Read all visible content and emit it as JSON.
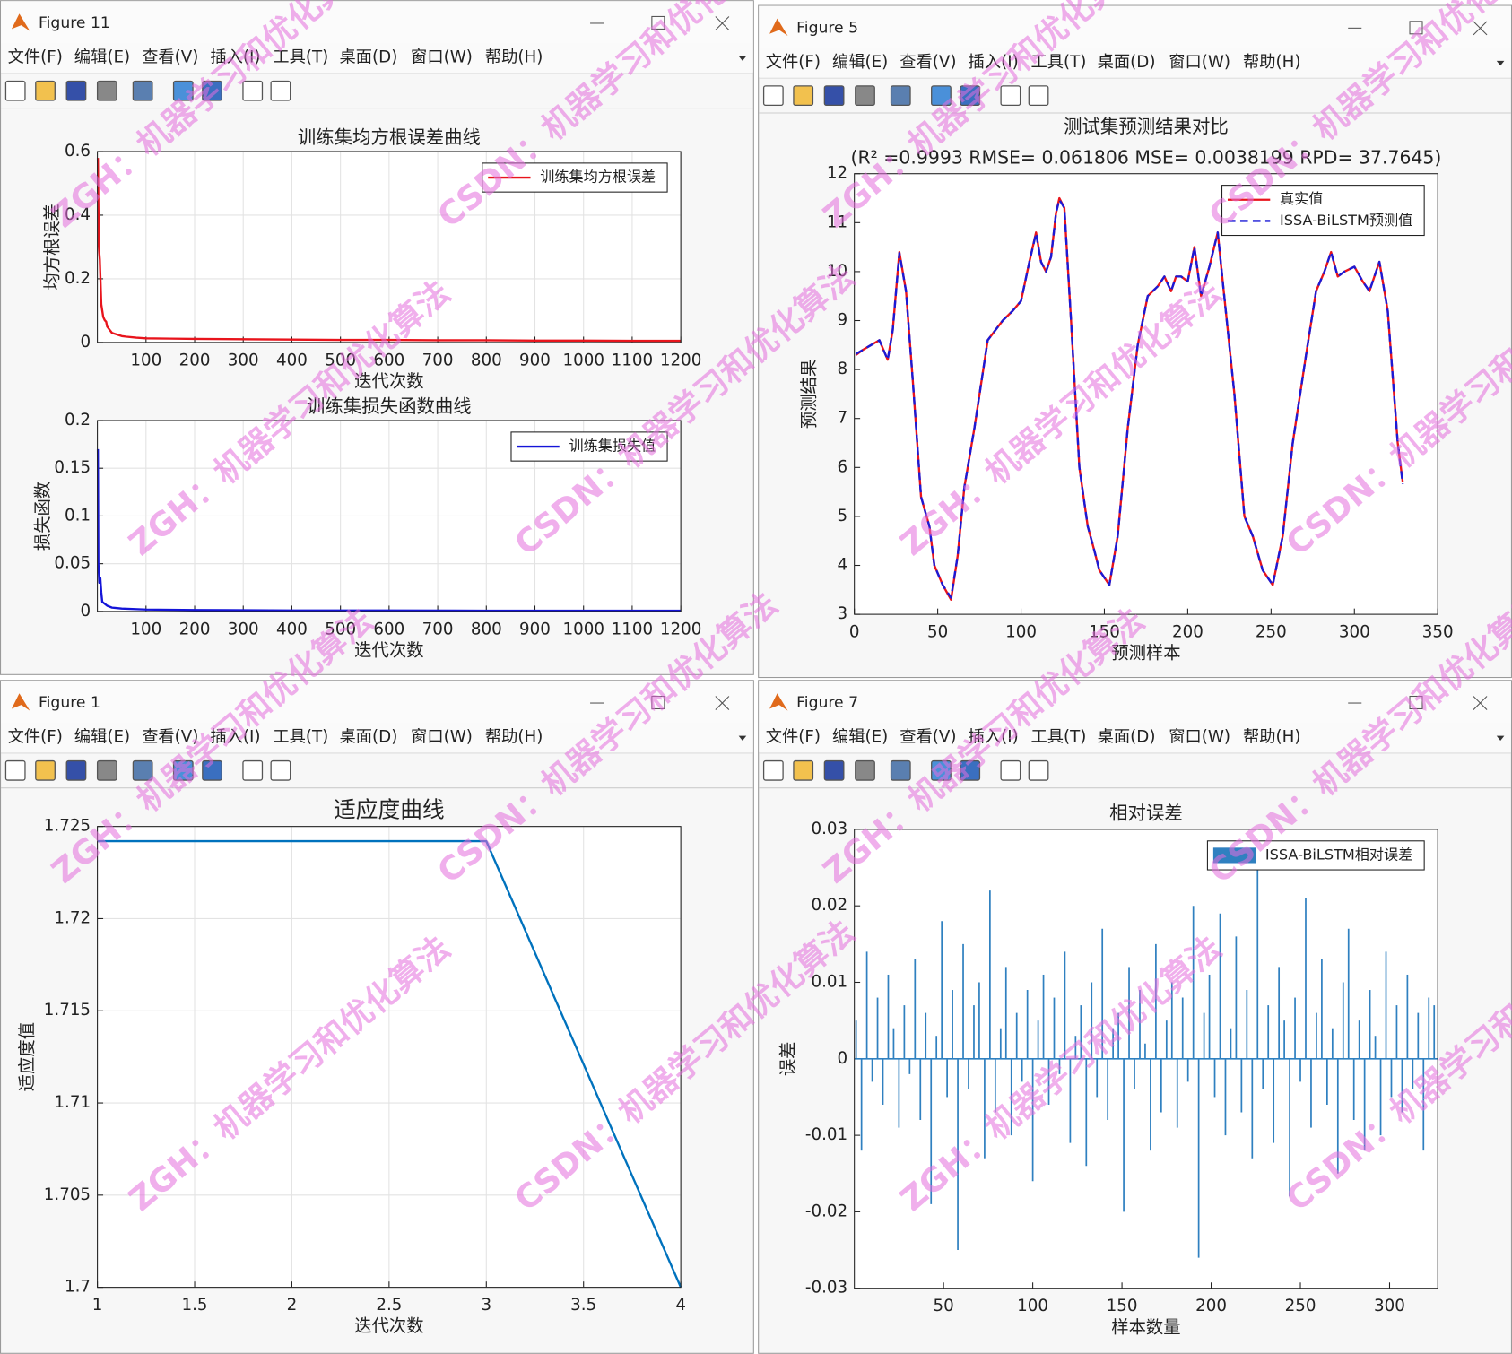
{
  "windows": [
    {
      "title": "Figure 11"
    },
    {
      "title": "Figure 5"
    },
    {
      "title": "Figure 1"
    },
    {
      "title": "Figure 7"
    }
  ],
  "menu": [
    "文件(F)",
    "编辑(E)",
    "查看(V)",
    "插入(I)",
    "工具(T)",
    "桌面(D)",
    "窗口(W)",
    "帮助(H)"
  ],
  "watermarks": [
    "ZGH：机器学习和优化算法",
    "CSDN：机器学习和优化算法"
  ],
  "chart_data": [
    {
      "type": "line",
      "title": "训练集均方根误差曲线",
      "xlabel": "迭代次数",
      "ylabel": "均方根误差",
      "x": [
        1,
        3,
        5,
        8,
        10,
        12,
        15,
        18,
        20,
        25,
        30,
        40,
        50,
        60,
        80,
        100,
        150,
        200,
        300,
        400,
        500,
        600,
        700,
        800,
        900,
        1000,
        1100,
        1200
      ],
      "series": [
        {
          "name": "训练集均方根误差",
          "color": "#e8141c",
          "values": [
            0.58,
            0.3,
            0.26,
            0.12,
            0.1,
            0.08,
            0.07,
            0.065,
            0.05,
            0.04,
            0.03,
            0.025,
            0.02,
            0.018,
            0.015,
            0.013,
            0.012,
            0.011,
            0.01,
            0.009,
            0.008,
            0.008,
            0.007,
            0.007,
            0.006,
            0.006,
            0.005,
            0.005
          ]
        }
      ],
      "xlim": [
        0,
        1200
      ],
      "xticks": [
        100,
        200,
        300,
        400,
        500,
        600,
        700,
        800,
        900,
        1000,
        1100,
        1200
      ],
      "ylim": [
        0,
        0.6
      ],
      "yticks": [
        0,
        0.2,
        0.4,
        0.6
      ],
      "grid": true,
      "legend": "northeast"
    },
    {
      "type": "line",
      "title": "训练集损失函数曲线",
      "xlabel": "迭代次数",
      "ylabel": "损失函数",
      "x": [
        1,
        2,
        4,
        6,
        8,
        10,
        15,
        20,
        30,
        50,
        100,
        200,
        400,
        600,
        800,
        1000,
        1200
      ],
      "series": [
        {
          "name": "训练集损失值",
          "color": "#1414d8",
          "values": [
            0.17,
            0.05,
            0.03,
            0.035,
            0.02,
            0.01,
            0.008,
            0.006,
            0.004,
            0.003,
            0.002,
            0.0015,
            0.001,
            0.001,
            0.0008,
            0.0008,
            0.0008
          ]
        }
      ],
      "xlim": [
        0,
        1200
      ],
      "xticks": [
        100,
        200,
        300,
        400,
        500,
        600,
        700,
        800,
        900,
        1000,
        1100,
        1200
      ],
      "ylim": [
        0,
        0.2
      ],
      "yticks": [
        0,
        0.05,
        0.1,
        0.15,
        0.2
      ],
      "grid": true,
      "legend": "northeast"
    },
    {
      "type": "line",
      "title": "测试集预测结果对比",
      "subtitle": "(R² =0.9993 RMSE= 0.061806 MSE= 0.0038199 RPD= 37.7645)",
      "xlabel": "预测样本",
      "ylabel": "预测结果",
      "x": [
        1,
        5,
        10,
        15,
        20,
        23,
        27,
        31,
        35,
        40,
        45,
        48,
        53,
        58,
        62,
        66,
        72,
        80,
        89,
        95,
        100,
        105,
        109,
        112,
        115,
        118,
        121,
        123,
        126,
        130,
        135,
        140,
        144,
        147,
        153,
        158,
        164,
        170,
        176,
        182,
        186,
        190,
        193,
        196,
        200,
        204,
        208,
        213,
        218,
        221,
        228,
        234,
        239,
        245,
        251,
        257,
        263,
        271,
        277,
        282,
        286,
        290,
        294,
        300,
        305,
        309,
        315,
        320,
        326,
        329
      ],
      "series": [
        {
          "name": "真实值",
          "color": "#e8141c",
          "linestyle": "-",
          "values": [
            8.3,
            8.4,
            8.5,
            8.6,
            8.2,
            8.8,
            10.4,
            9.6,
            7.8,
            5.4,
            4.8,
            4.0,
            3.6,
            3.3,
            4.2,
            5.6,
            6.8,
            8.6,
            9.0,
            9.2,
            9.4,
            10.2,
            10.8,
            10.2,
            10.0,
            10.3,
            11.2,
            11.5,
            11.3,
            9.0,
            6.0,
            4.8,
            4.3,
            3.9,
            3.6,
            4.6,
            6.8,
            8.5,
            9.5,
            9.7,
            9.9,
            9.6,
            9.9,
            9.9,
            9.8,
            10.5,
            9.5,
            10.1,
            10.8,
            9.8,
            7.5,
            5.0,
            4.6,
            3.9,
            3.6,
            4.6,
            6.5,
            8.3,
            9.6,
            10.0,
            10.4,
            9.9,
            10.0,
            10.1,
            9.8,
            9.6,
            10.2,
            9.2,
            6.5,
            5.7
          ]
        },
        {
          "name": "ISSA-BiLSTM预测值",
          "color": "#1a1ad6",
          "linestyle": "--",
          "values": [
            8.32,
            8.4,
            8.5,
            8.6,
            8.2,
            8.8,
            10.38,
            9.6,
            7.8,
            5.4,
            4.8,
            4.0,
            3.6,
            3.34,
            4.2,
            5.6,
            6.8,
            8.6,
            9.0,
            9.2,
            9.4,
            10.2,
            10.78,
            10.2,
            10.0,
            10.3,
            11.2,
            11.47,
            11.3,
            9.0,
            6.0,
            4.8,
            4.3,
            3.9,
            3.6,
            4.6,
            6.8,
            8.5,
            9.5,
            9.7,
            9.9,
            9.6,
            9.9,
            9.9,
            9.8,
            10.5,
            9.5,
            10.1,
            10.8,
            9.8,
            7.5,
            5.0,
            4.6,
            3.9,
            3.6,
            4.6,
            6.5,
            8.3,
            9.6,
            10.0,
            10.4,
            9.9,
            10.0,
            10.1,
            9.8,
            9.6,
            10.2,
            9.2,
            6.5,
            5.66
          ]
        }
      ],
      "xlim": [
        0,
        350
      ],
      "xticks": [
        0,
        50,
        100,
        150,
        200,
        250,
        300,
        350
      ],
      "ylim": [
        3,
        12
      ],
      "yticks": [
        3,
        4,
        5,
        6,
        7,
        8,
        9,
        10,
        11,
        12
      ],
      "grid": false,
      "legend": "northeast"
    },
    {
      "type": "line",
      "title": "适应度曲线",
      "xlabel": "迭代次数",
      "ylabel": "适应度值",
      "x": [
        1,
        2,
        3,
        4
      ],
      "series": [
        {
          "name": null,
          "color": "#0072bd",
          "values": [
            1.7242,
            1.7242,
            1.7242,
            1.7
          ]
        }
      ],
      "xlim": [
        1,
        4
      ],
      "xticks": [
        1,
        1.5,
        2,
        2.5,
        3,
        3.5,
        4
      ],
      "ylim": [
        1.7,
        1.725
      ],
      "yticks": [
        1.7,
        1.705,
        1.71,
        1.715,
        1.72,
        1.725
      ],
      "grid": true
    },
    {
      "type": "bar",
      "title": "相对误差",
      "xlabel": "样本数量",
      "ylabel": "误差",
      "x": [
        1,
        4,
        7,
        10,
        13,
        16,
        19,
        22,
        25,
        28,
        31,
        34,
        37,
        40,
        43,
        46,
        49,
        52,
        55,
        58,
        61,
        64,
        67,
        70,
        73,
        76,
        79,
        82,
        85,
        88,
        91,
        94,
        97,
        100,
        103,
        106,
        109,
        112,
        115,
        118,
        121,
        124,
        127,
        130,
        133,
        136,
        139,
        142,
        145,
        148,
        151,
        154,
        157,
        160,
        163,
        166,
        169,
        172,
        175,
        178,
        181,
        184,
        187,
        190,
        193,
        196,
        199,
        202,
        205,
        208,
        211,
        214,
        217,
        220,
        223,
        226,
        229,
        232,
        235,
        238,
        241,
        244,
        247,
        250,
        253,
        256,
        259,
        262,
        265,
        268,
        271,
        274,
        277,
        280,
        283,
        286,
        289,
        292,
        295,
        298,
        301,
        304,
        307,
        310,
        313,
        316,
        319,
        322,
        325
      ],
      "series": [
        {
          "name": "ISSA-BiLSTM相对误差",
          "color": "#2f80c0",
          "values": [
            0.005,
            -0.012,
            0.014,
            -0.003,
            0.008,
            -0.006,
            0.011,
            0.004,
            -0.009,
            0.007,
            -0.002,
            0.013,
            -0.008,
            0.006,
            -0.019,
            0.003,
            0.018,
            -0.005,
            0.009,
            -0.025,
            0.015,
            -0.004,
            0.007,
            0.01,
            -0.013,
            0.022,
            -0.007,
            0.004,
            0.012,
            -0.01,
            0.006,
            -0.003,
            0.009,
            -0.016,
            0.005,
            0.011,
            -0.006,
            0.008,
            -0.002,
            0.014,
            -0.011,
            0.003,
            0.007,
            -0.014,
            0.01,
            -0.005,
            0.017,
            -0.008,
            0.004,
            0.006,
            -0.02,
            0.012,
            -0.004,
            0.009,
            0.002,
            -0.012,
            0.015,
            -0.007,
            0.005,
            0.01,
            -0.009,
            0.008,
            -0.003,
            0.02,
            -0.026,
            0.006,
            0.011,
            -0.005,
            0.019,
            -0.01,
            0.004,
            0.016,
            -0.007,
            0.009,
            -0.013,
            0.025,
            -0.004,
            0.007,
            -0.011,
            0.012,
            0.005,
            -0.018,
            0.008,
            -0.003,
            0.021,
            -0.009,
            0.006,
            0.013,
            -0.006,
            0.004,
            -0.015,
            0.01,
            0.017,
            -0.008,
            0.005,
            -0.012,
            0.009,
            0.003,
            -0.01,
            0.014,
            -0.005,
            0.007,
            -0.007,
            0.011,
            -0.004,
            0.006,
            -0.012,
            0.008,
            0.007
          ]
        }
      ],
      "xlim": [
        0,
        327
      ],
      "xticks": [
        50,
        100,
        150,
        200,
        250,
        300
      ],
      "ylim": [
        -0.03,
        0.03
      ],
      "yticks": [
        -0.03,
        -0.02,
        -0.01,
        0,
        0.01,
        0.02,
        0.03
      ],
      "grid": false,
      "legend": "northeast"
    }
  ]
}
